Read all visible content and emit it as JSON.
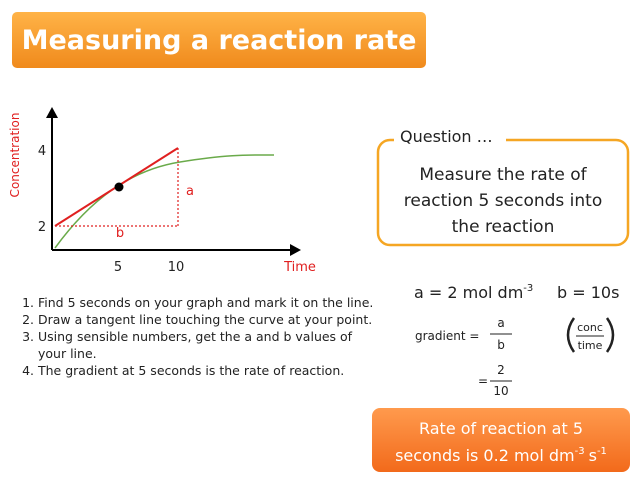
{
  "title": "Measuring a reaction rate",
  "graph": {
    "y_label": "Concentration",
    "x_label": "Time",
    "y_ticks": [
      "4",
      "2"
    ],
    "x_ticks": [
      "5",
      "10"
    ],
    "a_label": "a",
    "b_label": "b"
  },
  "steps": [
    "Find 5 seconds on your graph and mark it on the line.",
    "Draw a tangent line touching the curve at your point.",
    "Using sensible numbers, get the a and b values of your line.",
    "The gradient at 5 seconds is the rate of reaction."
  ],
  "question": {
    "heading": "Question …",
    "lines": [
      "Measure the rate of",
      "reaction 5 seconds into",
      "the reaction"
    ]
  },
  "working": {
    "a_text": "a = 2 mol dm",
    "a_sup": "-3",
    "b_text": "b = 10s",
    "gradient_label": "gradient =",
    "fraction1": {
      "numerator": "a",
      "denominator": "b"
    },
    "equals": "=",
    "fraction2": {
      "numerator": "2",
      "denominator": "10"
    },
    "hint": {
      "numerator": "conc",
      "denominator": "time"
    }
  },
  "result": {
    "line1": "Rate of reaction at 5",
    "line2": "seconds is 0.2 mol dm",
    "sup1": "-3",
    "unit": "s",
    "sup2": "-1"
  }
}
